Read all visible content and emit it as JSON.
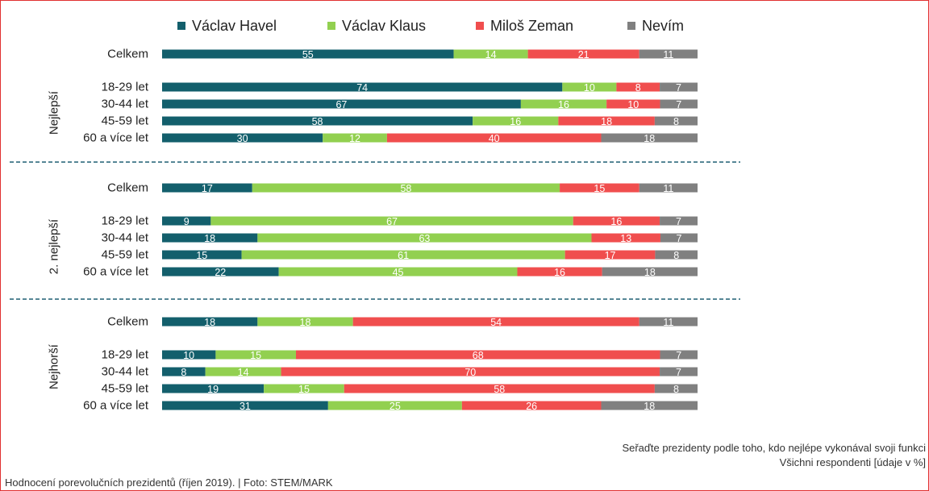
{
  "colors": {
    "havel": "#135f6c",
    "klaus": "#92d050",
    "zeman": "#f04e4e",
    "nevim": "#808080",
    "separator": "#1f5f74"
  },
  "legend": [
    {
      "name": "Václav Havel",
      "color": "#135f6c"
    },
    {
      "name": "Václav Klaus",
      "color": "#92d050"
    },
    {
      "name": "Miloš Zeman",
      "color": "#f04e4e"
    },
    {
      "name": "Nevím",
      "color": "#808080"
    }
  ],
  "chart_data": {
    "type": "bar",
    "orientation": "horizontal",
    "stacked": true,
    "percent": true,
    "series_names": [
      "Václav Havel",
      "Václav Klaus",
      "Miloš Zeman",
      "Nevím"
    ],
    "groups": [
      {
        "label": "Nejlepší",
        "rows": [
          {
            "label": "Celkem",
            "values": [
              55,
              14,
              21,
              11
            ]
          },
          {
            "label": "18-29 let",
            "values": [
              74,
              10,
              8,
              7
            ]
          },
          {
            "label": "30-44 let",
            "values": [
              67,
              16,
              10,
              7
            ]
          },
          {
            "label": "45-59 let",
            "values": [
              58,
              16,
              18,
              8
            ]
          },
          {
            "label": "60 a více let",
            "values": [
              30,
              12,
              40,
              18
            ]
          }
        ]
      },
      {
        "label": "2. nejlepší",
        "rows": [
          {
            "label": "Celkem",
            "values": [
              17,
              58,
              15,
              11
            ]
          },
          {
            "label": "18-29 let",
            "values": [
              9,
              67,
              16,
              7
            ]
          },
          {
            "label": "30-44 let",
            "values": [
              18,
              63,
              13,
              7
            ]
          },
          {
            "label": "45-59 let",
            "values": [
              15,
              61,
              17,
              8
            ]
          },
          {
            "label": "60 a více let",
            "values": [
              22,
              45,
              16,
              18
            ]
          }
        ]
      },
      {
        "label": "Nejhorší",
        "rows": [
          {
            "label": "Celkem",
            "values": [
              18,
              18,
              54,
              11
            ]
          },
          {
            "label": "18-29 let",
            "values": [
              10,
              15,
              68,
              7
            ]
          },
          {
            "label": "30-44 let",
            "values": [
              8,
              14,
              70,
              7
            ]
          },
          {
            "label": "45-59 let",
            "values": [
              19,
              15,
              58,
              8
            ]
          },
          {
            "label": "60 a více let",
            "values": [
              31,
              25,
              26,
              18
            ]
          }
        ]
      }
    ]
  },
  "notes": {
    "question": "Seřaďte prezidenty podle toho, kdo nejlépe vykonával svoji funkci",
    "base": "Všichni respondenti  [údaje v %]"
  },
  "caption": "Hodnocení porevolučních prezidentů (říjen 2019). | Foto: STEM/MARK"
}
